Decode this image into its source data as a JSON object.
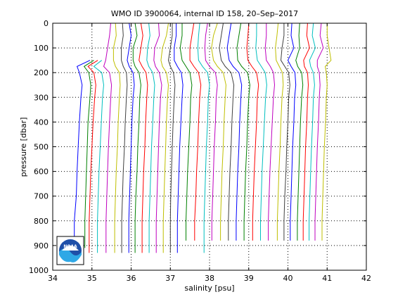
{
  "chart_data": {
    "type": "line",
    "title": "WMO ID 3900064, internal ID 158, 20–Sep–2017",
    "xlabel": "salinity [psu]",
    "ylabel": "pressure [dbar]",
    "xlim": [
      34,
      42
    ],
    "ylim": [
      1000,
      0
    ],
    "y_reversed": true,
    "grid": "dotted",
    "x_ticks": [
      "34",
      "35",
      "36",
      "37",
      "38",
      "39",
      "40",
      "41",
      "42"
    ],
    "y_ticks": [
      "0",
      "100",
      "200",
      "300",
      "400",
      "500",
      "600",
      "700",
      "800",
      "900",
      "1000"
    ],
    "x_offset_note": "profiles successively offset in salinity",
    "logo_text": "NOAA",
    "palette": [
      "#0000ff",
      "#008000",
      "#ff0000",
      "#00bfbf",
      "#bf00bf",
      "#bfbf00",
      "#404040"
    ],
    "pressure_levels": [
      0,
      50,
      100,
      150,
      175,
      200,
      250,
      300,
      400,
      500,
      600,
      700,
      800,
      875
    ],
    "series": [
      {
        "color": "#0000ff",
        "values": [
          null,
          null,
          null,
          34.95,
          34.62,
          34.68,
          34.75,
          34.72,
          34.68,
          34.65,
          34.62,
          34.6,
          34.55,
          34.55
        ],
        "bottom": [
          900,
          34.55
        ]
      },
      {
        "color": "#008000",
        "values": [
          null,
          null,
          null,
          35.05,
          34.8,
          34.92,
          34.97,
          34.95,
          34.9,
          34.88,
          34.86,
          34.84,
          34.82,
          34.82
        ],
        "bottom": [
          910,
          34.82
        ]
      },
      {
        "color": "#ff0000",
        "values": [
          null,
          null,
          null,
          35.15,
          34.9,
          35.05,
          35.1,
          35.07,
          35.03,
          35.0,
          34.97,
          34.95,
          34.93,
          34.93
        ],
        "bottom": [
          930,
          34.93
        ]
      },
      {
        "color": "#00bfbf",
        "values": [
          null,
          null,
          null,
          35.25,
          35.05,
          35.25,
          35.3,
          35.27,
          35.24,
          35.21,
          35.18,
          35.16,
          35.14,
          35.14
        ],
        "bottom": [
          930,
          35.14
        ]
      },
      {
        "color": "#bf00bf",
        "values": [
          35.48,
          35.45,
          35.4,
          35.35,
          35.3,
          35.45,
          35.5,
          35.48,
          35.45,
          35.42,
          35.4,
          35.38,
          35.36,
          35.36
        ],
        "bottom": [
          930,
          35.36
        ]
      },
      {
        "color": "#bfbf00",
        "values": [
          35.6,
          35.62,
          35.55,
          35.55,
          35.6,
          35.7,
          35.72,
          35.7,
          35.67,
          35.65,
          35.62,
          35.6,
          35.58,
          35.58
        ],
        "bottom": [
          930,
          35.58
        ]
      },
      {
        "color": "#404040",
        "values": [
          35.78,
          35.8,
          35.75,
          35.75,
          35.8,
          35.88,
          35.9,
          35.88,
          35.85,
          35.83,
          35.8,
          35.78,
          35.76,
          35.76
        ],
        "bottom": [
          930,
          35.76
        ]
      },
      {
        "color": "#0000ff",
        "values": [
          35.95,
          36.0,
          35.95,
          35.9,
          35.95,
          36.05,
          36.08,
          36.05,
          36.02,
          36.0,
          35.98,
          35.96,
          35.94,
          35.94
        ],
        "bottom": [
          930,
          35.94
        ]
      },
      {
        "color": "#008000",
        "values": [
          36.1,
          36.15,
          36.05,
          36.05,
          36.1,
          36.2,
          36.25,
          36.22,
          36.2,
          36.17,
          36.15,
          36.12,
          36.1,
          36.1
        ],
        "bottom": [
          930,
          36.1
        ]
      },
      {
        "color": "#ff0000",
        "values": [
          36.25,
          36.3,
          36.25,
          36.2,
          36.28,
          36.38,
          36.42,
          36.4,
          36.37,
          36.35,
          36.32,
          36.3,
          36.28,
          36.28
        ],
        "bottom": [
          930,
          36.28
        ]
      },
      {
        "color": "#00bfbf",
        "values": [
          36.45,
          36.48,
          36.42,
          36.4,
          36.45,
          36.55,
          36.6,
          36.58,
          36.55,
          36.52,
          36.5,
          36.48,
          36.46,
          36.46
        ],
        "bottom": [
          930,
          36.46
        ]
      },
      {
        "color": "#bf00bf",
        "values": [
          36.7,
          36.72,
          36.6,
          36.58,
          36.62,
          36.72,
          36.78,
          36.75,
          36.72,
          36.7,
          36.68,
          36.66,
          36.64,
          36.64
        ],
        "bottom": [
          930,
          36.64
        ]
      },
      {
        "color": "#bfbf00",
        "values": [
          36.95,
          36.9,
          36.8,
          36.76,
          36.8,
          36.9,
          36.95,
          36.93,
          36.9,
          36.88,
          36.86,
          36.84,
          36.82,
          36.82
        ],
        "bottom": [
          930,
          36.82
        ]
      },
      {
        "color": "#404040",
        "values": [
          37.05,
          37.05,
          37.0,
          36.95,
          37.0,
          37.08,
          37.12,
          37.1,
          37.07,
          37.05,
          37.03,
          37.01,
          37.0,
          37.0
        ],
        "bottom": [
          930,
          37.0
        ]
      },
      {
        "color": "#0000ff",
        "values": [
          37.15,
          37.15,
          37.1,
          37.1,
          37.18,
          37.28,
          37.32,
          37.3,
          37.27,
          37.24,
          37.22,
          37.2,
          37.18,
          37.18
        ],
        "bottom": [
          930,
          37.18
        ]
      },
      {
        "color": "#008000",
        "values": [
          37.3,
          37.3,
          37.25,
          37.3,
          37.4,
          37.5,
          37.55,
          37.52,
          37.5,
          37.47,
          37.44,
          37.42,
          37.4,
          37.4
        ],
        "bottom": [
          880,
          37.4
        ]
      },
      {
        "color": "#ff0000",
        "values": [
          37.6,
          37.55,
          37.5,
          37.5,
          37.6,
          37.72,
          37.78,
          37.75,
          37.72,
          37.7,
          37.67,
          37.65,
          37.62,
          37.62
        ],
        "bottom": [
          880,
          37.62
        ]
      },
      {
        "color": "#00bfbf",
        "values": [
          37.75,
          37.72,
          37.7,
          37.72,
          37.82,
          37.95,
          38.0,
          37.97,
          37.95,
          37.92,
          37.9,
          37.88,
          37.86,
          37.86
        ],
        "bottom": [
          930,
          37.86
        ]
      },
      {
        "color": "#bf00bf",
        "values": [
          37.95,
          37.9,
          37.88,
          37.9,
          38.0,
          38.15,
          38.2,
          38.17,
          38.15,
          38.12,
          38.1,
          38.08,
          38.06,
          38.06
        ],
        "bottom": [
          880,
          38.06
        ]
      },
      {
        "color": "#bfbf00",
        "values": [
          38.2,
          38.1,
          38.05,
          38.1,
          38.2,
          38.35,
          38.42,
          38.4,
          38.37,
          38.35,
          38.32,
          38.3,
          38.28,
          38.28
        ],
        "bottom": [
          880,
          38.28
        ]
      },
      {
        "color": "#404040",
        "values": [
          38.35,
          38.3,
          38.25,
          38.3,
          38.4,
          38.55,
          38.62,
          38.6,
          38.57,
          38.55,
          38.52,
          38.5,
          38.48,
          38.48
        ],
        "bottom": [
          880,
          38.48
        ]
      },
      {
        "color": "#0000ff",
        "values": [
          38.55,
          38.5,
          38.45,
          38.5,
          38.6,
          38.75,
          38.82,
          38.8,
          38.77,
          38.75,
          38.72,
          38.7,
          38.68,
          38.68
        ],
        "bottom": [
          880,
          38.68
        ]
      },
      {
        "color": "#008000",
        "values": [
          38.8,
          38.75,
          38.7,
          38.72,
          38.82,
          38.97,
          39.03,
          39.0,
          38.97,
          38.95,
          38.92,
          38.9,
          38.88,
          38.88
        ],
        "bottom": [
          880,
          38.88
        ]
      },
      {
        "color": "#ff0000",
        "values": [
          39.0,
          38.98,
          38.95,
          38.98,
          39.08,
          39.2,
          39.25,
          39.22,
          39.2,
          39.17,
          39.14,
          39.12,
          39.1,
          39.1
        ],
        "bottom": [
          880,
          39.1
        ]
      },
      {
        "color": "#00bfbf",
        "values": [
          39.2,
          39.2,
          39.18,
          39.22,
          39.32,
          39.42,
          39.46,
          39.43,
          39.4,
          39.37,
          39.34,
          39.32,
          39.3,
          39.3
        ],
        "bottom": [
          880,
          39.3
        ]
      },
      {
        "color": "#bf00bf",
        "values": [
          39.45,
          39.45,
          39.42,
          39.45,
          39.55,
          39.63,
          39.66,
          39.63,
          39.6,
          39.57,
          39.54,
          39.52,
          39.5,
          39.5
        ],
        "bottom": [
          880,
          39.5
        ]
      },
      {
        "color": "#bfbf00",
        "values": [
          39.75,
          39.72,
          39.68,
          39.7,
          39.78,
          39.86,
          39.88,
          39.85,
          39.82,
          39.8,
          39.77,
          39.75,
          39.73,
          39.73
        ],
        "bottom": [
          880,
          39.73
        ]
      },
      {
        "color": "#404040",
        "values": [
          39.9,
          39.9,
          39.85,
          39.82,
          39.92,
          40.02,
          40.05,
          40.02,
          40.0,
          39.97,
          39.95,
          39.92,
          39.9,
          39.9
        ],
        "bottom": [
          880,
          39.9
        ]
      },
      {
        "color": "#0000ff",
        "values": [
          40.1,
          40.08,
          40.15,
          40.0,
          40.08,
          40.18,
          40.2,
          40.17,
          40.15,
          40.12,
          40.1,
          40.08,
          40.06,
          40.06
        ],
        "bottom": [
          880,
          40.06
        ]
      },
      {
        "color": "#008000",
        "values": [
          40.3,
          40.28,
          40.3,
          40.2,
          40.25,
          40.35,
          40.38,
          40.35,
          40.32,
          40.3,
          40.28,
          40.26,
          40.24,
          40.24
        ],
        "bottom": [
          880,
          40.24
        ]
      },
      {
        "color": "#ff0000",
        "values": [
          40.5,
          40.48,
          40.55,
          40.4,
          40.42,
          40.5,
          40.52,
          40.5,
          40.48,
          40.45,
          40.43,
          40.41,
          40.39,
          40.39
        ],
        "bottom": [
          880,
          40.39
        ]
      },
      {
        "color": "#00bfbf",
        "values": [
          40.65,
          40.62,
          40.7,
          40.55,
          40.58,
          40.65,
          40.68,
          40.65,
          40.63,
          40.6,
          40.58,
          40.56,
          40.54,
          40.54
        ],
        "bottom": [
          880,
          40.54
        ]
      },
      {
        "color": "#bf00bf",
        "values": [
          40.85,
          40.82,
          40.9,
          40.75,
          40.75,
          40.8,
          40.82,
          40.8,
          40.78,
          40.75,
          40.73,
          40.71,
          40.69,
          40.69
        ],
        "bottom": [
          880,
          40.69
        ]
      },
      {
        "color": "#bfbf00",
        "values": [
          41.0,
          41.0,
          41.05,
          41.1,
          40.95,
          40.98,
          41.0,
          40.98,
          40.96,
          40.93,
          40.91,
          40.89,
          40.87,
          40.87
        ],
        "bottom": [
          880,
          40.87
        ]
      }
    ]
  }
}
